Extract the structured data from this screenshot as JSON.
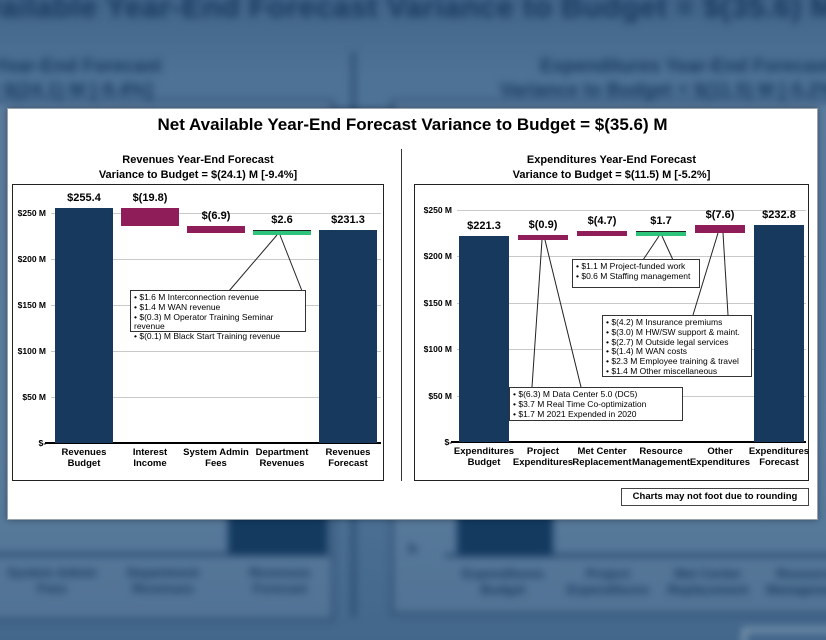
{
  "panel": {
    "title": "Net Available Year-End Forecast Variance to Budget = $(35.6) M",
    "footnote": "Charts may not foot due to rounding"
  },
  "colors": {
    "navy": "#17395e",
    "magenta": "#8e1d5a",
    "green": "#2ec47c",
    "background_tint": "#4d7195",
    "background_ink": "#17395e",
    "gridline": "#c9c9c9"
  },
  "chart_data": [
    {
      "type": "bar",
      "subtype": "waterfall",
      "title_line1": "Revenues Year-End Forecast",
      "title_line2": "Variance to Budget = $(24.1) M [-9.4%]",
      "ylim": [
        0,
        272
      ],
      "y_axis": {
        "ticks": [
          {
            "label": "$250 M",
            "value": 250
          },
          {
            "label": "$200 M",
            "value": 200
          },
          {
            "label": "$150 M",
            "value": 150
          },
          {
            "label": "$100 M",
            "value": 100
          },
          {
            "label": "$50 M",
            "value": 50
          },
          {
            "label": "$-",
            "value": 0
          }
        ]
      },
      "bars": [
        {
          "category": [
            "Revenues",
            "Budget"
          ],
          "label": "$255.4",
          "value": 255.4,
          "start": 0,
          "end": 255.4,
          "color": "navy"
        },
        {
          "category": [
            "Interest",
            "Income"
          ],
          "label": "$(19.8)",
          "value": -19.8,
          "start": 255.4,
          "end": 235.6,
          "color": "magenta"
        },
        {
          "category": [
            "System Admin",
            "Fees"
          ],
          "label": "$(6.9)",
          "value": -6.9,
          "start": 235.6,
          "end": 228.7,
          "color": "magenta"
        },
        {
          "category": [
            "Department",
            "Revenues"
          ],
          "label": "$2.6",
          "value": 2.6,
          "start": 228.7,
          "end": 231.3,
          "color": "green"
        },
        {
          "category": [
            "Revenues",
            "Forecast"
          ],
          "label": "$231.3",
          "value": 231.3,
          "start": 0,
          "end": 231.3,
          "color": "navy"
        }
      ],
      "callouts": [
        {
          "lines": [
            "• $1.6 M Interconnection revenue",
            "• $1.4 M WAN revenue",
            "• $(0.3) M Operator Training  Seminar revenue",
            "• $(0.1) M Black Start Training revenue"
          ]
        }
      ]
    },
    {
      "type": "bar",
      "subtype": "waterfall",
      "title_line1": "Expenditures Year-End Forecast",
      "title_line2": "Variance to Budget = $(11.5) M [-5.2%]",
      "ylim": [
        0,
        272
      ],
      "y_axis": {
        "ticks": [
          {
            "label": "$250 M",
            "value": 250
          },
          {
            "label": "$200 M",
            "value": 200
          },
          {
            "label": "$150 M",
            "value": 150
          },
          {
            "label": "$100 M",
            "value": 100
          },
          {
            "label": "$50 M",
            "value": 50
          },
          {
            "label": "$-",
            "value": 0
          }
        ]
      },
      "bars": [
        {
          "category": [
            "Expenditures",
            "Budget"
          ],
          "label": "$221.3",
          "value": 221.3,
          "start": 0,
          "end": 221.3,
          "color": "navy"
        },
        {
          "category": [
            "Project",
            "Expenditures"
          ],
          "label": "$(0.9)",
          "value": -0.9,
          "start": 221.3,
          "end": 222.2,
          "color": "magenta"
        },
        {
          "category": [
            "Met Center",
            "Replacement"
          ],
          "label": "$(4.7)",
          "value": -4.7,
          "start": 222.2,
          "end": 226.9,
          "color": "magenta"
        },
        {
          "category": [
            "Resource",
            "Management"
          ],
          "label": "$1.7",
          "value": 1.7,
          "start": 226.9,
          "end": 225.2,
          "color": "green"
        },
        {
          "category": [
            "Other",
            "Expenditures"
          ],
          "label": "$(7.6)",
          "value": -7.6,
          "start": 225.2,
          "end": 232.8,
          "color": "magenta"
        },
        {
          "category": [
            "Expenditures",
            "Forecast"
          ],
          "label": "$232.8",
          "value": 232.8,
          "start": 0,
          "end": 232.8,
          "color": "navy"
        }
      ],
      "callouts": [
        {
          "lines": [
            "• $1.1 M Project-funded work",
            "• $0.6 M Staffing management"
          ]
        },
        {
          "lines": [
            "• $(4.2) M Insurance premiums",
            "• $(3.0) M HW/SW support & maint.",
            "• $(2.7) M Outside legal services",
            "• $(1.4) M WAN costs",
            "• $2.3 M Employee training & travel",
            "• $1.4 M Other miscellaneous"
          ]
        },
        {
          "lines": [
            "• $(6.3) M Data Center 5.0 (DC5)",
            "• $3.7 M Real Time  Co-optimization",
            "• $1.7 M 2021 Expended in 2020"
          ]
        }
      ]
    }
  ]
}
